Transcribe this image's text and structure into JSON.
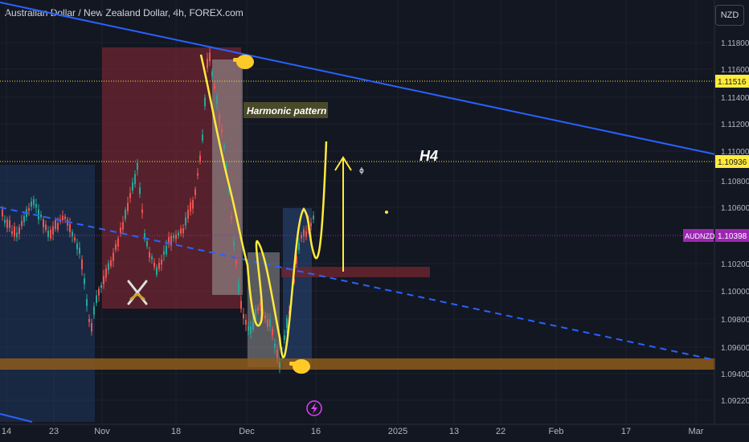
{
  "header": {
    "title": "Australian Dollar / New Zealand Dollar, 4h, FOREX.com",
    "currency": "NZD"
  },
  "chart_data": {
    "type": "candlestick",
    "symbol": "AUDNZD",
    "y_ticks": [
      "1.11800",
      "1.11600",
      "1.11400",
      "1.11200",
      "1.11000",
      "1.10800",
      "1.10600",
      "1.10200",
      "1.10000",
      "1.09800",
      "1.09600",
      "1.09400",
      "1.09220"
    ],
    "x_ticks": [
      "14",
      "23",
      "Nov",
      "18",
      "Dec",
      "16",
      "2025",
      "13",
      "22",
      "Feb",
      "17",
      "Mar"
    ],
    "price_labels": [
      {
        "name": "level-upper",
        "value": "1.11516",
        "color": "#ffeb3b"
      },
      {
        "name": "level-lower",
        "value": "1.10936",
        "color": "#ffeb3b"
      },
      {
        "name": "current",
        "symbol": "AUDNZD",
        "value": "1.10398",
        "color": "#9c27b0"
      }
    ],
    "annotations": {
      "pattern_label": "Harmonic pattern",
      "timeframe_label": "H4"
    },
    "colors": {
      "up": "#26a69a",
      "down": "#ef5350",
      "trendline": "#2962ff",
      "projection": "#ffeb3b",
      "zone_red": "#7b2a34",
      "zone_blue": "#1f3a66",
      "support_zone": "#8d5a1a"
    }
  }
}
